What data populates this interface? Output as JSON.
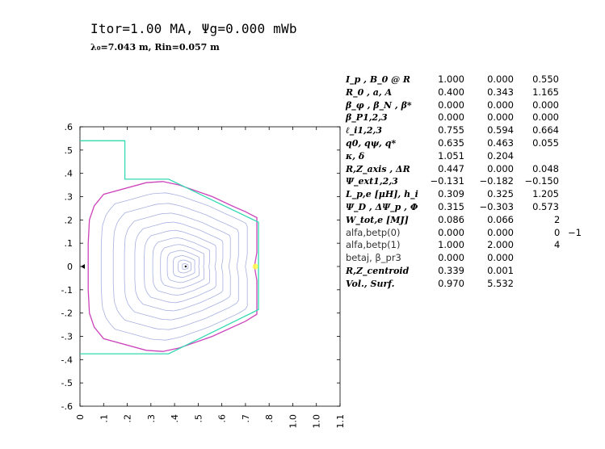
{
  "header": {
    "title": "Itor=1.00 MA, Ψg=0.000 mWb",
    "subtitle": "λ₀=7.043 m, Rin=0.057 m"
  },
  "chart_data": {
    "type": "contour",
    "x_ticks": [
      "0",
      ".1",
      ".2",
      ".3",
      ".4",
      ".5",
      ".6",
      ".7",
      ".8",
      "1.0",
      "1.0",
      "1.1"
    ],
    "y_ticks": [
      ".6",
      ".5",
      ".4",
      ".3",
      ".2",
      ".1",
      "0",
      "-.1",
      "-.2",
      "-.3",
      "-.4",
      "-.5",
      "-.6"
    ],
    "xlim": [
      0,
      1.1
    ],
    "ylim": [
      -0.6,
      0.6
    ],
    "magnetic_axis": [
      0.447,
      0.0
    ],
    "wall": [
      [
        0.0,
        0.54
      ],
      [
        0.19,
        0.54
      ],
      [
        0.19,
        0.375
      ],
      [
        0.375,
        0.375
      ],
      [
        0.755,
        0.19
      ],
      [
        0.755,
        -0.185
      ],
      [
        0.375,
        -0.375
      ],
      [
        0.0,
        -0.375
      ]
    ],
    "separatrix": [
      [
        0.64,
        0.262
      ],
      [
        0.7,
        0.235
      ],
      [
        0.748,
        0.21
      ],
      [
        0.748,
        0.06
      ],
      [
        0.738,
        0.0
      ],
      [
        0.748,
        -0.06
      ],
      [
        0.748,
        -0.205
      ],
      [
        0.7,
        -0.235
      ],
      [
        0.56,
        -0.3
      ],
      [
        0.42,
        -0.35
      ],
      [
        0.35,
        -0.365
      ],
      [
        0.28,
        -0.36
      ],
      [
        0.1,
        -0.31
      ],
      [
        0.06,
        -0.26
      ],
      [
        0.04,
        -0.2
      ],
      [
        0.035,
        -0.1
      ],
      [
        0.035,
        0.1
      ],
      [
        0.04,
        0.2
      ],
      [
        0.06,
        0.26
      ],
      [
        0.1,
        0.31
      ],
      [
        0.28,
        0.36
      ],
      [
        0.35,
        0.365
      ],
      [
        0.42,
        0.35
      ],
      [
        0.56,
        0.3
      ]
    ],
    "flux_levels": 11,
    "colors": {
      "wall": "#33d9b2",
      "separatrix": "#cc44bb",
      "flux": "#a8b0e0",
      "xpoint": "#ffff44"
    }
  },
  "params": [
    {
      "label": "I_p ,  B_0 @ R",
      "values": [
        "1.000",
        "0.000",
        "0.550"
      ]
    },
    {
      "label": "R_0 ,  a,  A",
      "values": [
        "0.400",
        "0.343",
        "1.165"
      ]
    },
    {
      "label": "β_φ ,  β_N ,  β*",
      "values": [
        "0.000",
        "0.000",
        "0.000"
      ]
    },
    {
      "label": "β_P1,2,3",
      "values": [
        "0.000",
        "0.000",
        "0.000"
      ]
    },
    {
      "label": "ℓ_i1,2,3",
      "values": [
        "0.755",
        "0.594",
        "0.664"
      ]
    },
    {
      "label": "q0,  qψ,  q*",
      "values": [
        "0.635",
        "0.463",
        "0.055"
      ]
    },
    {
      "label": "κ,  δ",
      "values": [
        "1.051",
        "0.204"
      ]
    },
    {
      "label": "R,Z_axis ,  ΔR",
      "values": [
        "0.447",
        "0.000",
        "0.048"
      ]
    },
    {
      "label": "Ψ_ext1,2,3",
      "values": [
        "−0.131",
        "−0.182",
        "−0.150"
      ]
    },
    {
      "label": "L_p,e [μH],  h_i",
      "values": [
        "0.309",
        "0.325",
        "1.205"
      ]
    },
    {
      "label": "Ψ_D ,  ΔΨ_p ,  Φ",
      "values": [
        "0.315",
        "−0.303",
        "0.573"
      ]
    },
    {
      "label": "W_tot,e [MJ]",
      "values": [
        "0.086",
        "0.066",
        "2"
      ]
    },
    {
      "label": "alfa,betp(0)",
      "plain": true,
      "values": [
        "0.000",
        "0.000",
        "−1",
        "0"
      ]
    },
    {
      "label": "alfa,betp(1)",
      "plain": true,
      "values": [
        "1.000",
        "2.000",
        "4"
      ]
    },
    {
      "label": "betaj,  β_pr3",
      "plain": true,
      "values": [
        "0.000",
        "0.000"
      ]
    },
    {
      "label": "R,Z_centroid",
      "values": [
        "0.339",
        "0.001"
      ]
    },
    {
      "label": "Vol.,  Surf.",
      "values": [
        "0.970",
        "5.532"
      ]
    }
  ]
}
